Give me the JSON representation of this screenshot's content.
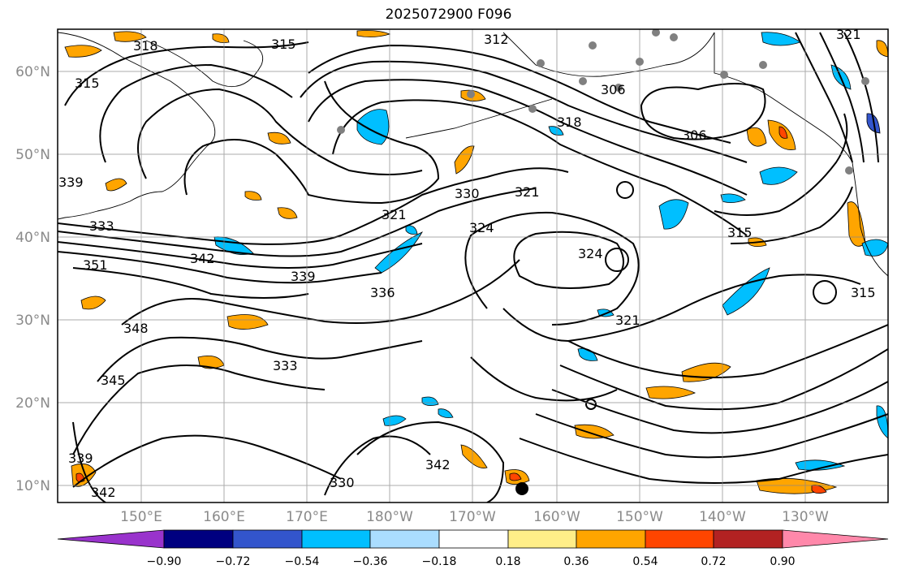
{
  "title": "2025072900 F096",
  "map": {
    "lat_labels": [
      "60°N",
      "50°N",
      "40°N",
      "30°N",
      "20°N",
      "10°N"
    ],
    "lon_labels": [
      "150°E",
      "160°E",
      "170°E",
      "180°W",
      "170°W",
      "160°W",
      "150°W",
      "140°W",
      "130°W"
    ],
    "contour_labels": [
      "318",
      "315",
      "312",
      "315",
      "321",
      "306",
      "318",
      "330",
      "321",
      "324",
      "333",
      "339",
      "351",
      "342",
      "339",
      "336",
      "321",
      "324",
      "315",
      "348",
      "345",
      "321",
      "333",
      "330",
      "342",
      "339",
      "342",
      "306",
      "315"
    ],
    "station_count": 14
  },
  "colorbar": {
    "colors": [
      "#9933cc",
      "#000080",
      "#3355cc",
      "#00bfff",
      "#aaddff",
      "#ffffff",
      "#ffee88",
      "#ffa500",
      "#ff4500",
      "#b22222",
      "#ff88aa"
    ],
    "tick_labels": [
      "−0.90",
      "−0.72",
      "−0.54",
      "−0.36",
      "−0.18",
      "0.18",
      "0.36",
      "0.54",
      "0.72",
      "0.90"
    ]
  }
}
